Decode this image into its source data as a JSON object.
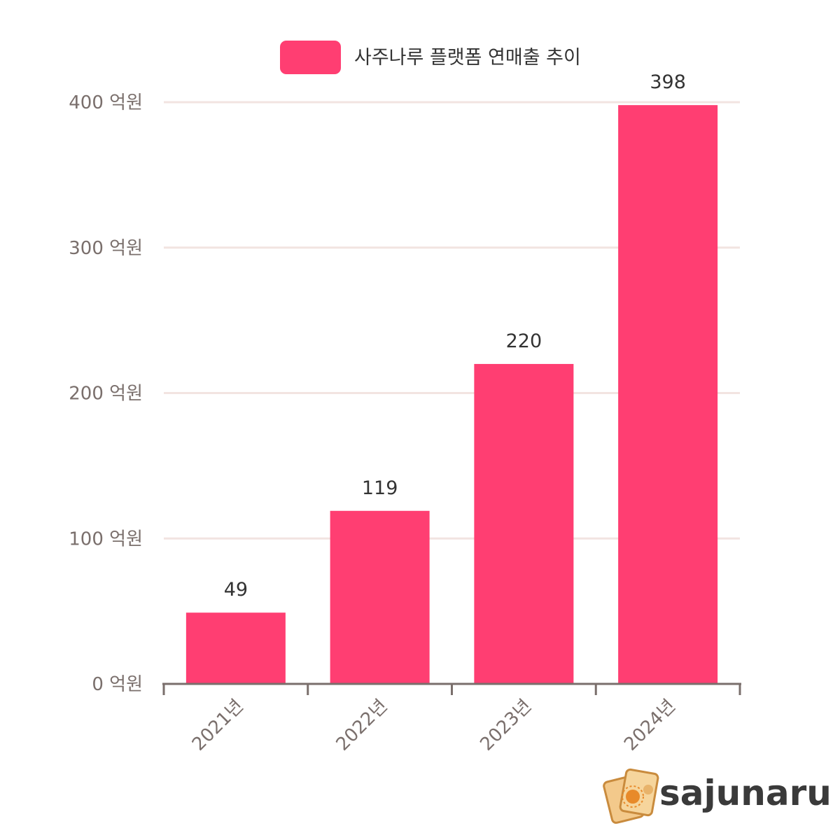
{
  "chart_data": {
    "type": "bar",
    "categories": [
      "2021년",
      "2022년",
      "2023년",
      "2024년"
    ],
    "series": [
      {
        "name": "사주나루 플랫폼 연매출 추이",
        "values": [
          49,
          119,
          220,
          398
        ],
        "color": "#ff3e72"
      }
    ],
    "data_labels": [
      "49",
      "119",
      "220",
      "398"
    ],
    "y_ticks": [
      {
        "value": 0,
        "label": "0 억원"
      },
      {
        "value": 100,
        "label": "100 억원"
      },
      {
        "value": 200,
        "label": "200 억원"
      },
      {
        "value": 300,
        "label": "300 억원"
      },
      {
        "value": 400,
        "label": "400 억원"
      }
    ],
    "ylim": [
      0,
      400
    ],
    "grid": true,
    "legend_position": "top-center",
    "xlabel": "",
    "ylabel": ""
  },
  "brand": {
    "logo_text": "sajunaru",
    "logo_icon": "tarot-cards-icon"
  },
  "colors": {
    "bar": "#ff3e72",
    "grid": "#f2e4e1",
    "axis": "#7a6f6c"
  }
}
